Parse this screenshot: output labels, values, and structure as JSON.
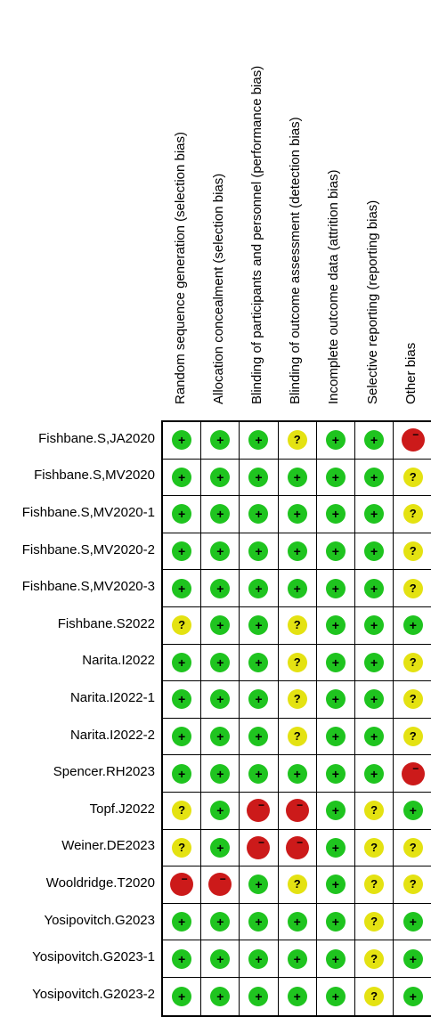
{
  "columns": [
    "Random sequence generation (selection bias)",
    "Allocation concealment (selection bias)",
    "Blinding of participants and personnel (performance bias)",
    "Blinding of outcome assessment (detection bias)",
    "Incomplete outcome data (attrition bias)",
    "Selective reporting (reporting bias)",
    "Other bias"
  ],
  "legend": {
    "low": "+",
    "unclear": "?",
    "high": "−"
  },
  "colors": {
    "low": "#1fc41f",
    "unclear": "#e4e212",
    "high": "#cc1a1a"
  },
  "studies": [
    {
      "name": "Fishbane.S,JA2020",
      "ratings": [
        "low",
        "low",
        "low",
        "unclear",
        "low",
        "low",
        "high"
      ]
    },
    {
      "name": "Fishbane.S,MV2020",
      "ratings": [
        "low",
        "low",
        "low",
        "low",
        "low",
        "low",
        "unclear"
      ]
    },
    {
      "name": "Fishbane.S,MV2020-1",
      "ratings": [
        "low",
        "low",
        "low",
        "low",
        "low",
        "low",
        "unclear"
      ]
    },
    {
      "name": "Fishbane.S,MV2020-2",
      "ratings": [
        "low",
        "low",
        "low",
        "low",
        "low",
        "low",
        "unclear"
      ]
    },
    {
      "name": "Fishbane.S,MV2020-3",
      "ratings": [
        "low",
        "low",
        "low",
        "low",
        "low",
        "low",
        "unclear"
      ]
    },
    {
      "name": "Fishbane.S2022",
      "ratings": [
        "unclear",
        "low",
        "low",
        "unclear",
        "low",
        "low",
        "low"
      ]
    },
    {
      "name": "Narita.I2022",
      "ratings": [
        "low",
        "low",
        "low",
        "unclear",
        "low",
        "low",
        "unclear"
      ]
    },
    {
      "name": "Narita.I2022-1",
      "ratings": [
        "low",
        "low",
        "low",
        "unclear",
        "low",
        "low",
        "unclear"
      ]
    },
    {
      "name": "Narita.I2022-2",
      "ratings": [
        "low",
        "low",
        "low",
        "unclear",
        "low",
        "low",
        "unclear"
      ]
    },
    {
      "name": "Spencer.RH2023",
      "ratings": [
        "low",
        "low",
        "low",
        "low",
        "low",
        "low",
        "high"
      ]
    },
    {
      "name": "Topf.J2022",
      "ratings": [
        "unclear",
        "low",
        "high",
        "high",
        "low",
        "unclear",
        "low"
      ]
    },
    {
      "name": "Weiner.DE2023",
      "ratings": [
        "unclear",
        "low",
        "high",
        "high",
        "low",
        "unclear",
        "unclear"
      ]
    },
    {
      "name": "Wooldridge.T2020",
      "ratings": [
        "high",
        "high",
        "low",
        "unclear",
        "low",
        "unclear",
        "unclear"
      ]
    },
    {
      "name": "Yosipovitch.G2023",
      "ratings": [
        "low",
        "low",
        "low",
        "low",
        "low",
        "unclear",
        "low"
      ]
    },
    {
      "name": "Yosipovitch.G2023-1",
      "ratings": [
        "low",
        "low",
        "low",
        "low",
        "low",
        "unclear",
        "low"
      ]
    },
    {
      "name": "Yosipovitch.G2023-2",
      "ratings": [
        "low",
        "low",
        "low",
        "low",
        "low",
        "unclear",
        "low"
      ]
    }
  ]
}
